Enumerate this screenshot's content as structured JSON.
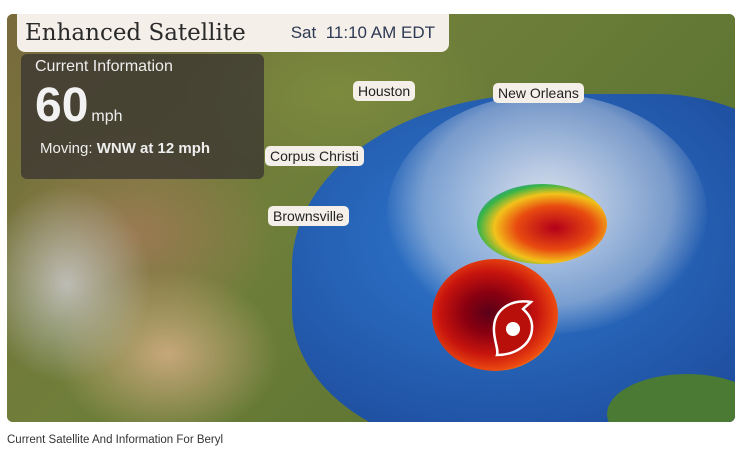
{
  "header": {
    "title": "Enhanced Satellite",
    "day": "Sat",
    "time": "11:10 AM EDT"
  },
  "info": {
    "heading": "Current Information",
    "wind_speed": "60",
    "wind_unit": "mph",
    "moving_label": "Moving:",
    "moving_value": "WNW at 12 mph"
  },
  "cities": [
    "Houston",
    "New Orleans",
    "Corpus Christi",
    "Brownsville"
  ],
  "storm_icon": "hurricane-icon",
  "storm_icon_color": "#b80f0a",
  "caption": "Current Satellite And Information For Beryl"
}
